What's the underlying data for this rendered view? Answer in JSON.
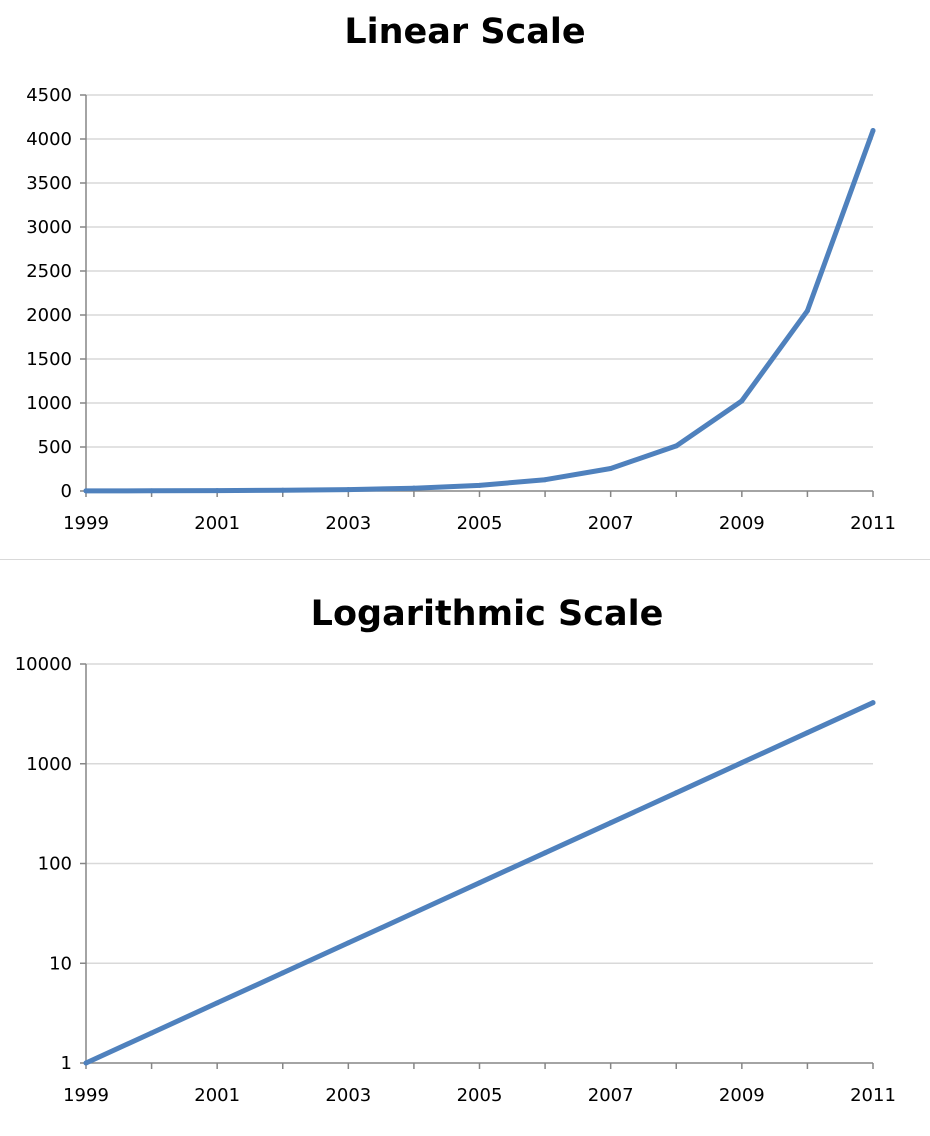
{
  "chart_data": [
    {
      "type": "line",
      "title": "Linear Scale",
      "xlabel": "",
      "ylabel": "",
      "x": [
        1999,
        2000,
        2001,
        2002,
        2003,
        2004,
        2005,
        2006,
        2007,
        2008,
        2009,
        2010,
        2011
      ],
      "series": [
        {
          "values": [
            1,
            2,
            4,
            8,
            16,
            32,
            64,
            128,
            256,
            512,
            1024,
            2048,
            4096
          ],
          "color": "#4f81bd"
        }
      ],
      "yscale": "linear",
      "ylim": [
        0,
        4500
      ],
      "yticks": [
        0,
        500,
        1000,
        1500,
        2000,
        2500,
        3000,
        3500,
        4000,
        4500
      ],
      "ytick_labels": [
        "0",
        "500",
        "1000",
        "1500",
        "2000",
        "2500",
        "3000",
        "3500",
        "4000",
        "4500"
      ],
      "xticks": [
        1999,
        2001,
        2003,
        2005,
        2007,
        2009,
        2011
      ],
      "xtick_labels": [
        "1999",
        "2001",
        "2003",
        "2005",
        "2007",
        "2009",
        "2011"
      ],
      "grid": true,
      "legend": "none"
    },
    {
      "type": "line",
      "title": "Logarithmic  Scale",
      "xlabel": "",
      "ylabel": "",
      "x": [
        1999,
        2000,
        2001,
        2002,
        2003,
        2004,
        2005,
        2006,
        2007,
        2008,
        2009,
        2010,
        2011
      ],
      "series": [
        {
          "values": [
            1,
            2,
            4,
            8,
            16,
            32,
            64,
            128,
            256,
            512,
            1024,
            2048,
            4096
          ],
          "color": "#4f81bd"
        }
      ],
      "yscale": "log",
      "ylim": [
        1,
        10000
      ],
      "yticks": [
        1,
        10,
        100,
        1000,
        10000
      ],
      "ytick_labels": [
        "1",
        "10",
        "100",
        "1000",
        "10000"
      ],
      "xticks": [
        1999,
        2001,
        2003,
        2005,
        2007,
        2009,
        2011
      ],
      "xtick_labels": [
        "1999",
        "2001",
        "2003",
        "2005",
        "2007",
        "2009",
        "2011"
      ],
      "grid": true,
      "legend": "none"
    }
  ]
}
